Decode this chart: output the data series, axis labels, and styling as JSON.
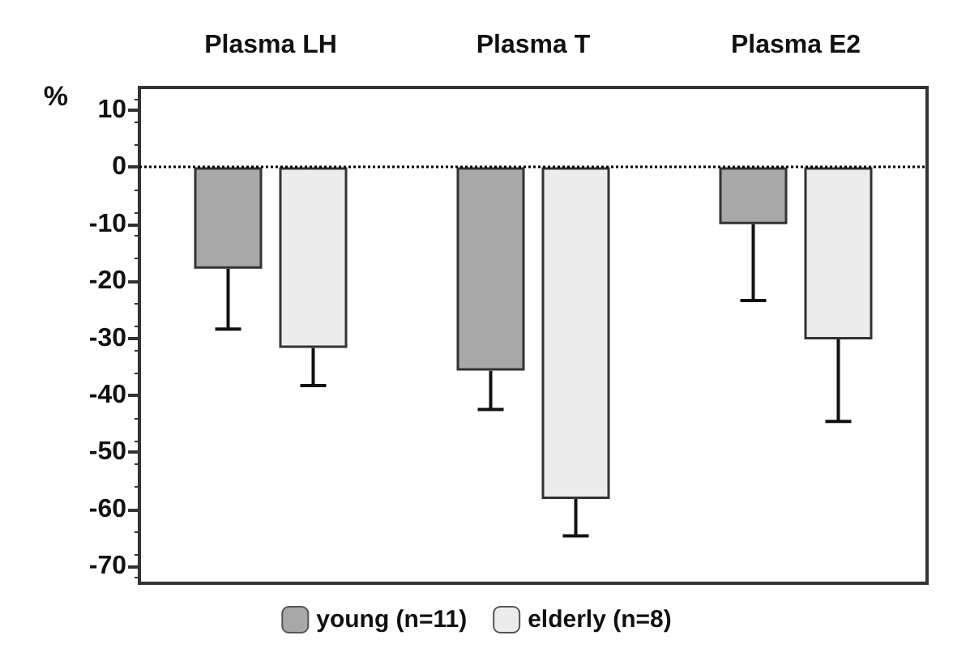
{
  "chart_data": {
    "type": "bar",
    "categories": [
      "Plasma LH",
      "Plasma T",
      "Plasma E2"
    ],
    "ylabel": "%",
    "series": [
      {
        "name": "young (n=11)",
        "color": "#a8a8a8",
        "values": [
          -17.8,
          -35.7,
          -10.0
        ],
        "errors": [
          [
            -28.4,
            -17.8
          ],
          [
            -42.5,
            -35.7
          ],
          [
            -23.4,
            -10.0
          ]
        ]
      },
      {
        "name": "elderly (n=8)",
        "color": "#ececec",
        "values": [
          -31.7,
          -58.2,
          -30.2
        ],
        "errors": [
          [
            -38.3,
            -31.7
          ],
          [
            -64.7,
            -58.2
          ],
          [
            -44.6,
            -30.2
          ]
        ]
      }
    ],
    "ylim": [
      -73,
      14
    ],
    "yticks": [
      -70,
      -60,
      -50,
      -40,
      -30,
      -20,
      -10,
      0,
      10
    ],
    "ref_lines": [
      {
        "axis": "y",
        "value": 0,
        "line_style": "dotted",
        "color": "#000000"
      }
    ],
    "legend": "bottom",
    "grid": false
  }
}
